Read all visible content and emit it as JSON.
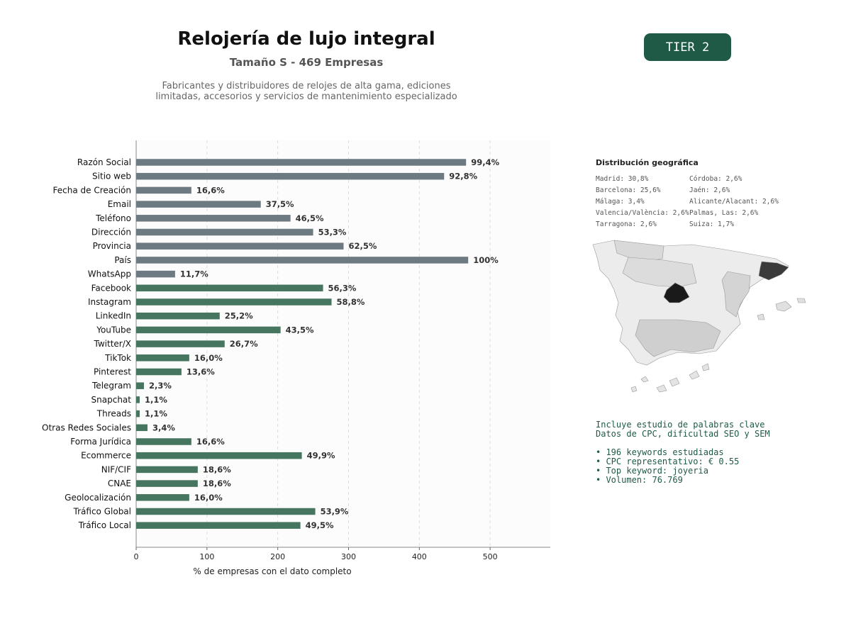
{
  "header": {
    "title": "Relojería de lujo integral",
    "subtitle": "Tamaño S - 469 Empresas",
    "description_line1": "Fabricantes y distribuidores de relojes de alta gama, ediciones",
    "description_line2": "limitadas, accesorios y servicios de mantenimiento especializado",
    "tier": "TIER 2"
  },
  "chart_data": {
    "type": "bar",
    "orientation": "horizontal",
    "xlabel": "% de empresas con el dato completo",
    "xlim": [
      0,
      585
    ],
    "xticks": [
      0,
      100,
      200,
      300,
      400,
      500
    ],
    "grid": "vertical dashed",
    "colors": {
      "contact": "#6e7a82",
      "social": "#46765f"
    },
    "categories": [
      "Razón Social",
      "Sitio web",
      "Fecha de Creación",
      "Email",
      "Teléfono",
      "Dirección",
      "Provincia",
      "País",
      "WhatsApp",
      "Facebook",
      "Instagram",
      "LinkedIn",
      "YouTube",
      "Twitter/X",
      "TikTok",
      "Pinterest",
      "Telegram",
      "Snapchat",
      "Threads",
      "Otras Redes Sociales",
      "Forma Jurídica",
      "Ecommerce",
      "NIF/CIF",
      "CNAE",
      "Geolocalización",
      "Tráfico Global",
      "Tráfico Local"
    ],
    "values": [
      466,
      435,
      78,
      176,
      218,
      250,
      293,
      469,
      55,
      264,
      276,
      118,
      204,
      125,
      75,
      64,
      11,
      5,
      5,
      16,
      78,
      234,
      87,
      87,
      75,
      253,
      232
    ],
    "labels": [
      "99,4%",
      "92,8%",
      "16,6%",
      "37,5%",
      "46,5%",
      "53,3%",
      "62,5%",
      "100%",
      "11,7%",
      "56,3%",
      "58,8%",
      "25,2%",
      "43,5%",
      "26,7%",
      "16,0%",
      "13,6%",
      "2,3%",
      "1,1%",
      "1,1%",
      "3,4%",
      "16,6%",
      "49,9%",
      "18,6%",
      "18,6%",
      "16,0%",
      "53,9%",
      "49,5%"
    ],
    "groups": [
      "contact",
      "contact",
      "contact",
      "contact",
      "contact",
      "contact",
      "contact",
      "contact",
      "contact",
      "social",
      "social",
      "social",
      "social",
      "social",
      "social",
      "social",
      "social",
      "social",
      "social",
      "social",
      "social",
      "social",
      "social",
      "social",
      "social",
      "social",
      "social"
    ]
  },
  "geo": {
    "title": "Distribución geográfica",
    "col1": [
      "Madrid: 30,8%",
      "Barcelona: 25,6%",
      "Málaga: 3,4%",
      "Valencia/València: 2,6%",
      "Tarragona: 2,6%"
    ],
    "col2": [
      "Córdoba: 2,6%",
      "Jaén: 2,6%",
      "Alicante/Alacant: 2,6%",
      "Palmas, Las: 2,6%",
      "Suiza: 1,7%"
    ]
  },
  "keywords": {
    "line1": "Incluye estudio de palabras clave",
    "line2": "Datos de CPC, dificultad SEO y SEM",
    "bullets": [
      "• 196 keywords estudiadas",
      "• CPC representativo: € 0.55",
      "• Top keyword: joyeria",
      "• Volumen: 76.769"
    ]
  }
}
